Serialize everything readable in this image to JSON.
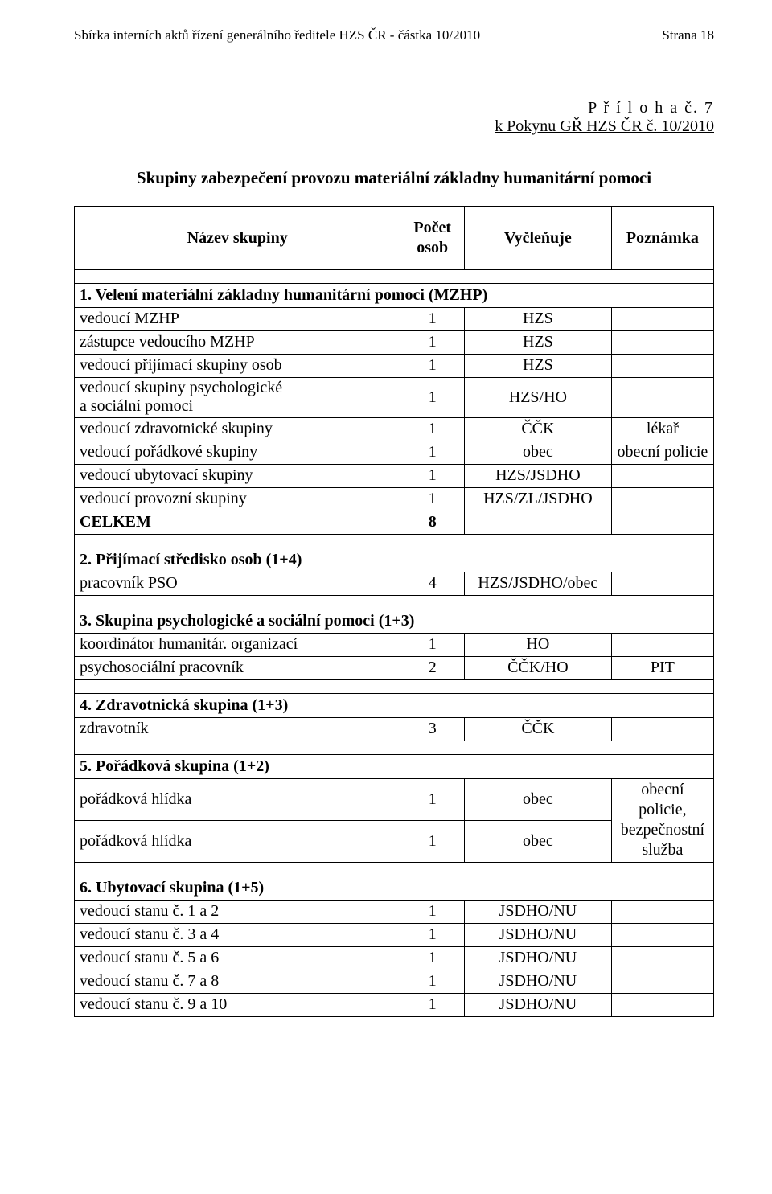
{
  "header": {
    "left": "Sbírka interních aktů řízení generálního ředitele HZS ČR - částka  10/2010",
    "right": "Strana     18"
  },
  "appendix": {
    "line1": "P ř í l o h a  č.   7",
    "line2": "k Pokynu GŘ HZS ČR č.  10/2010"
  },
  "title": "Skupiny zabezpečení provozu materiální základny humanitární pomoci",
  "columns": {
    "name": "Název skupiny",
    "count": "Počet osob",
    "alloc": "Vyčleňuje",
    "note": "Poznámka"
  },
  "sections": [
    {
      "title": "1. Velení materiální základny humanitární pomoci (MZHP)",
      "rows": [
        {
          "name": "vedoucí MZHP",
          "count": "1",
          "alloc": "HZS",
          "note": ""
        },
        {
          "name": "zástupce vedoucího MZHP",
          "count": "1",
          "alloc": "HZS",
          "note": ""
        },
        {
          "name": "vedoucí přijímací skupiny osob",
          "count": "1",
          "alloc": "HZS",
          "note": ""
        },
        {
          "name": "vedoucí skupiny psychologické\na sociální pomoci",
          "count": "1",
          "alloc": "HZS/HO",
          "note": "",
          "twoline": true
        },
        {
          "name": "vedoucí zdravotnické skupiny",
          "count": "1",
          "alloc": "ČČK",
          "note": "lékař"
        },
        {
          "name": "vedoucí pořádkové skupiny",
          "count": "1",
          "alloc": "obec",
          "note": "obecní policie"
        },
        {
          "name": "vedoucí ubytovací skupiny",
          "count": "1",
          "alloc": "HZS/JSDHO",
          "note": ""
        },
        {
          "name": "vedoucí provozní skupiny",
          "count": "1",
          "alloc": "HZS/ZL/JSDHO",
          "note": ""
        },
        {
          "name": "CELKEM",
          "count": "8",
          "alloc": "",
          "note": "",
          "bold": true
        }
      ]
    },
    {
      "title": "2. Přijímací středisko osob (1+4)",
      "rows": [
        {
          "name": "pracovník PSO",
          "count": "4",
          "alloc": "HZS/JSDHO/obec",
          "note": ""
        }
      ]
    },
    {
      "title": "3. Skupina psychologické a sociální pomoci (1+3)",
      "rows": [
        {
          "name": "koordinátor humanitár. organizací",
          "count": "1",
          "alloc": "HO",
          "note": ""
        },
        {
          "name": "psychosociální pracovník",
          "count": "2",
          "alloc": "ČČK/HO",
          "note": "PIT"
        }
      ]
    },
    {
      "title": "4. Zdravotnická skupina (1+3)",
      "rows": [
        {
          "name": "zdravotník",
          "count": "3",
          "alloc": "ČČK",
          "note": ""
        }
      ]
    },
    {
      "title": "5. Pořádková skupina (1+2)",
      "rows": [
        {
          "name": "pořádková hlídka",
          "count": "1",
          "alloc": "obec",
          "note_merge": "obecní policie,\nbezpečnostní\nslužba",
          "note_rowspan": 2
        },
        {
          "name": "pořádková hlídka",
          "count": "1",
          "alloc": "obec"
        }
      ]
    },
    {
      "title": "6. Ubytovací skupina (1+5)",
      "rows": [
        {
          "name": "vedoucí stanu č. 1 a 2",
          "count": "1",
          "alloc": "JSDHO/NU",
          "note": ""
        },
        {
          "name": "vedoucí stanu č. 3 a 4",
          "count": "1",
          "alloc": "JSDHO/NU",
          "note": ""
        },
        {
          "name": "vedoucí stanu č. 5 a 6",
          "count": "1",
          "alloc": "JSDHO/NU",
          "note": ""
        },
        {
          "name": "vedoucí stanu č. 7 a 8",
          "count": "1",
          "alloc": "JSDHO/NU",
          "note": ""
        },
        {
          "name": "vedoucí stanu č. 9 a 10",
          "count": "1",
          "alloc": "JSDHO/NU",
          "note": ""
        }
      ]
    }
  ]
}
